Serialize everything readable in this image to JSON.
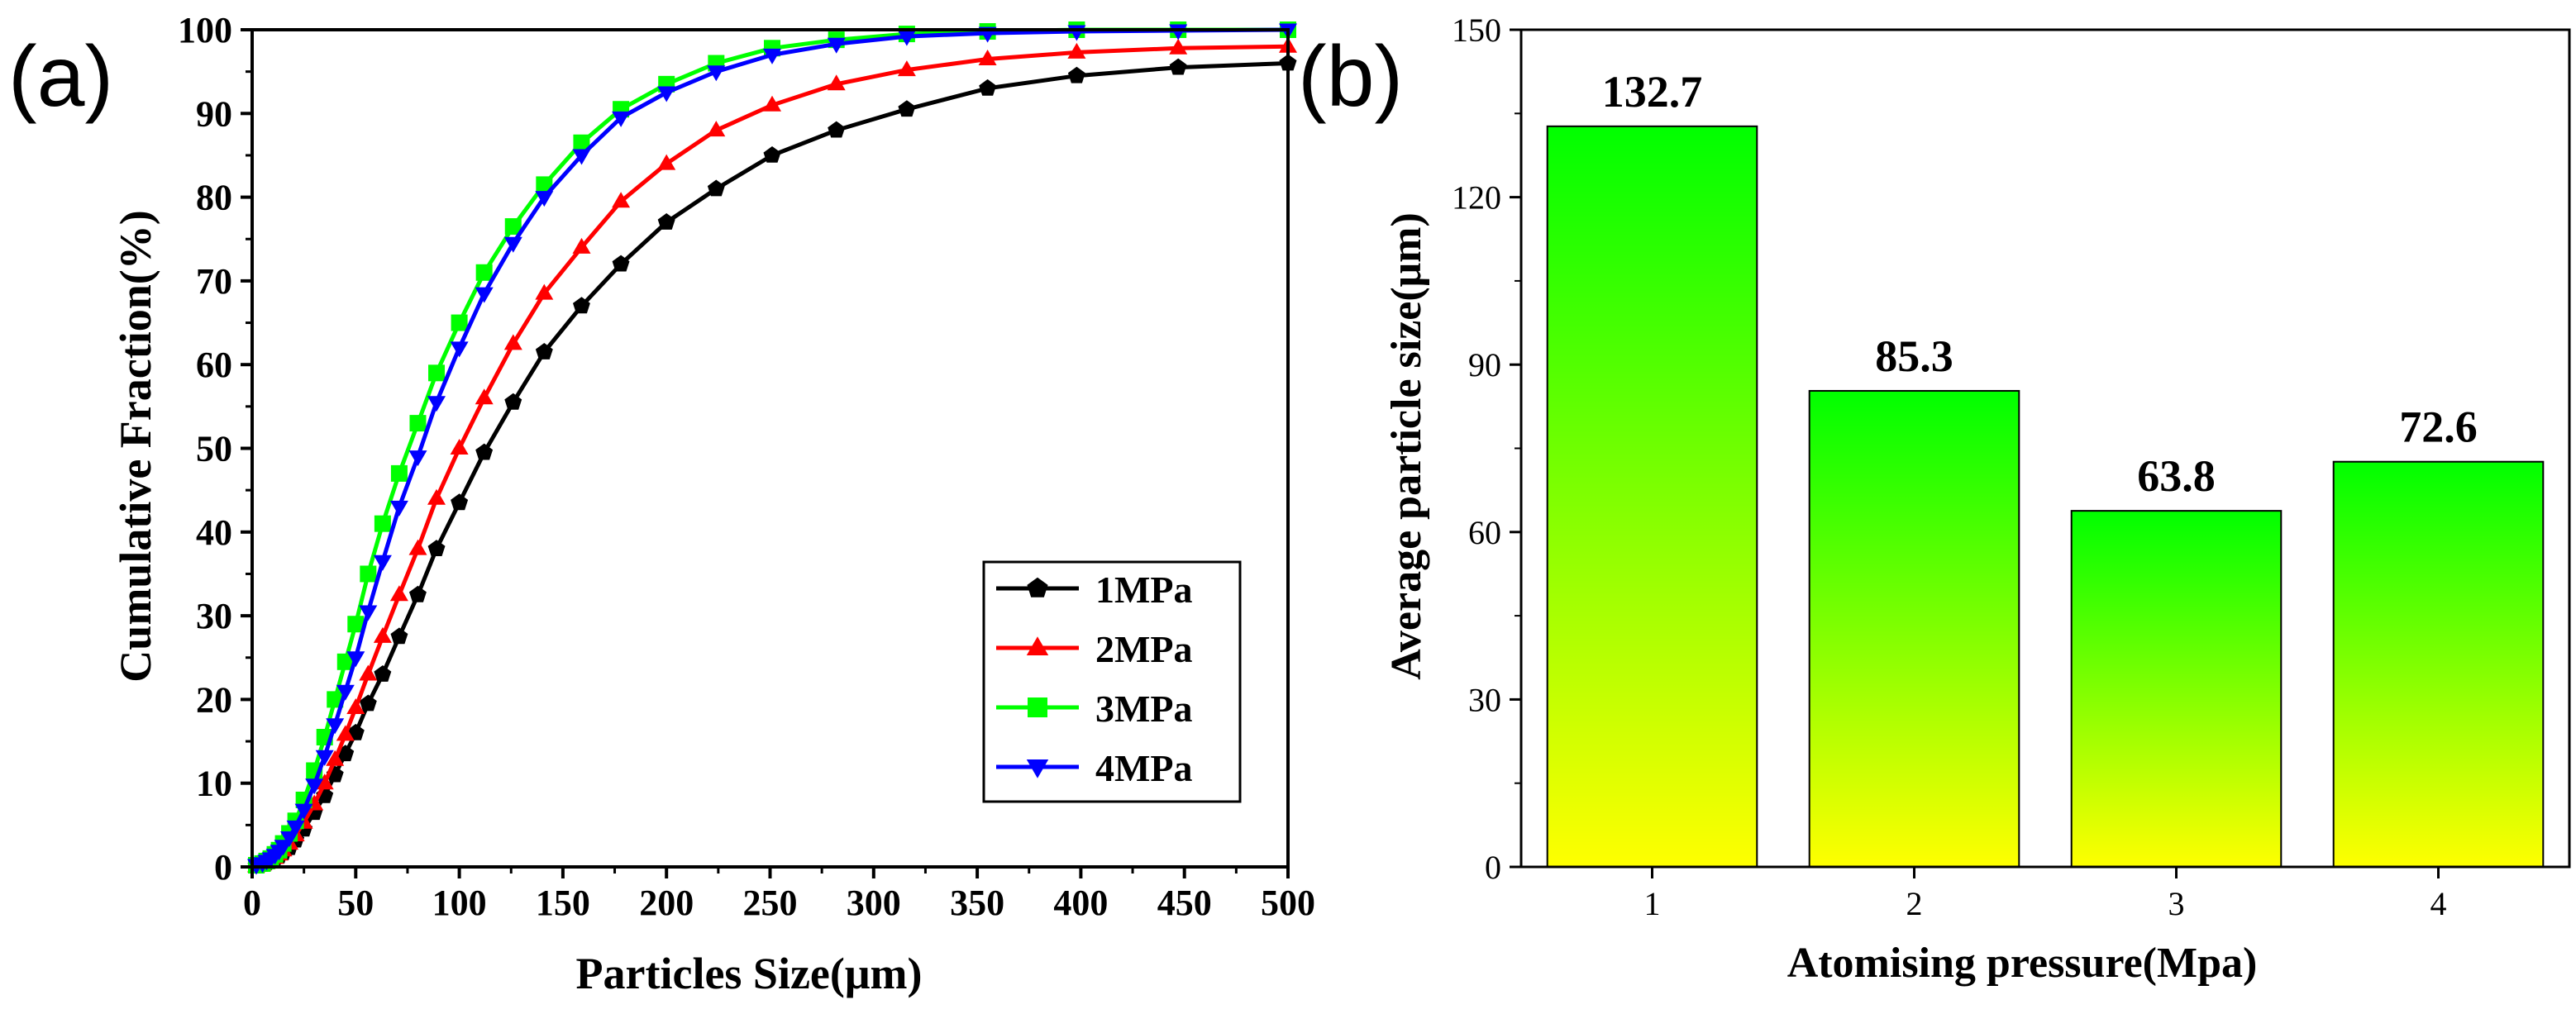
{
  "chart_data": [
    {
      "panel_label": "(a)",
      "type": "line",
      "title": "",
      "xlabel": "Particles Size(μm)",
      "ylabel": "Cumulative Fraction(%)",
      "xlim": [
        0,
        500
      ],
      "ylim": [
        0,
        100
      ],
      "xticks": [
        0,
        50,
        100,
        150,
        200,
        250,
        300,
        350,
        400,
        450,
        500
      ],
      "yticks": [
        0,
        10,
        20,
        30,
        40,
        50,
        60,
        70,
        80,
        90,
        100
      ],
      "grid": false,
      "legend_position": "bottom-right",
      "series": [
        {
          "name": "1MPa",
          "color": "#000000",
          "marker": "pentagon",
          "x": [
            2,
            5,
            7,
            9,
            11,
            13,
            15,
            18,
            21,
            25,
            30,
            35,
            40,
            45,
            50,
            56,
            63,
            71,
            80,
            89,
            100,
            112,
            126,
            141,
            159,
            178,
            200,
            224,
            251,
            282,
            316,
            355,
            398,
            447,
            500
          ],
          "y": [
            0.1,
            0.3,
            0.5,
            0.8,
            1.0,
            1.3,
            1.7,
            2.3,
            3.2,
            4.5,
            6.5,
            8.5,
            11.0,
            13.5,
            16.0,
            19.5,
            23.0,
            27.5,
            32.5,
            38.0,
            43.5,
            49.5,
            55.5,
            61.5,
            67.0,
            72.0,
            77.0,
            81.0,
            85.0,
            88.0,
            90.5,
            93.0,
            94.5,
            95.5,
            96.0
          ]
        },
        {
          "name": "2MPa",
          "color": "#ff0000",
          "marker": "triangle-up",
          "x": [
            2,
            5,
            7,
            9,
            11,
            13,
            15,
            18,
            21,
            25,
            30,
            35,
            40,
            45,
            50,
            56,
            63,
            71,
            80,
            89,
            100,
            112,
            126,
            141,
            159,
            178,
            200,
            224,
            251,
            282,
            316,
            355,
            398,
            447,
            500
          ],
          "y": [
            0.1,
            0.3,
            0.5,
            0.8,
            1.1,
            1.5,
            2.0,
            2.8,
            3.8,
            5.3,
            7.5,
            10.0,
            12.8,
            15.8,
            19.0,
            23.0,
            27.5,
            32.5,
            38.0,
            44.0,
            50.0,
            56.0,
            62.5,
            68.5,
            74.0,
            79.5,
            84.0,
            88.0,
            91.0,
            93.5,
            95.2,
            96.5,
            97.3,
            97.8,
            98.0
          ]
        },
        {
          "name": "3MPa",
          "color": "#00ff00",
          "marker": "square",
          "x": [
            2,
            5,
            7,
            9,
            11,
            13,
            15,
            18,
            21,
            25,
            30,
            35,
            40,
            45,
            50,
            56,
            63,
            71,
            80,
            89,
            100,
            112,
            126,
            141,
            159,
            178,
            200,
            224,
            251,
            282,
            316,
            355,
            398,
            447,
            500
          ],
          "y": [
            0.2,
            0.4,
            0.7,
            1.0,
            1.5,
            2.0,
            2.8,
            4.0,
            5.5,
            8.0,
            11.5,
            15.5,
            20.0,
            24.5,
            29.0,
            35.0,
            41.0,
            47.0,
            53.0,
            59.0,
            65.0,
            71.0,
            76.5,
            81.5,
            86.5,
            90.5,
            93.5,
            96.0,
            97.8,
            98.8,
            99.5,
            99.8,
            100.0,
            100.0,
            100.0
          ]
        },
        {
          "name": "4MPa",
          "color": "#0000ff",
          "marker": "triangle-down",
          "x": [
            2,
            5,
            7,
            9,
            11,
            13,
            15,
            18,
            21,
            25,
            30,
            35,
            40,
            45,
            50,
            56,
            63,
            71,
            80,
            89,
            100,
            112,
            126,
            141,
            159,
            178,
            200,
            224,
            251,
            282,
            316,
            355,
            398,
            447,
            500
          ],
          "y": [
            0.2,
            0.4,
            0.7,
            1.0,
            1.4,
            1.9,
            2.5,
            3.5,
            4.8,
            6.8,
            9.8,
            13.2,
            17.0,
            21.0,
            25.0,
            30.5,
            36.5,
            43.0,
            49.0,
            55.5,
            62.0,
            68.5,
            74.5,
            80.0,
            85.0,
            89.5,
            92.5,
            95.0,
            97.0,
            98.3,
            99.2,
            99.6,
            99.8,
            99.9,
            100.0
          ]
        }
      ]
    },
    {
      "panel_label": "(b)",
      "type": "bar",
      "title": "",
      "xlabel": "Atomising pressure(Mpa)",
      "ylabel": "Average particle size(μm)",
      "categories": [
        "1",
        "2",
        "3",
        "4"
      ],
      "values": [
        132.7,
        85.3,
        63.8,
        72.6
      ],
      "value_labels": [
        "132.7",
        "85.3",
        "63.8",
        "72.6"
      ],
      "ylim": [
        0,
        150
      ],
      "yticks": [
        0,
        30,
        60,
        90,
        120,
        150
      ],
      "grid": false,
      "bar_gradient": {
        "top": "#00ff00",
        "bottom": "#ffff00"
      }
    }
  ]
}
